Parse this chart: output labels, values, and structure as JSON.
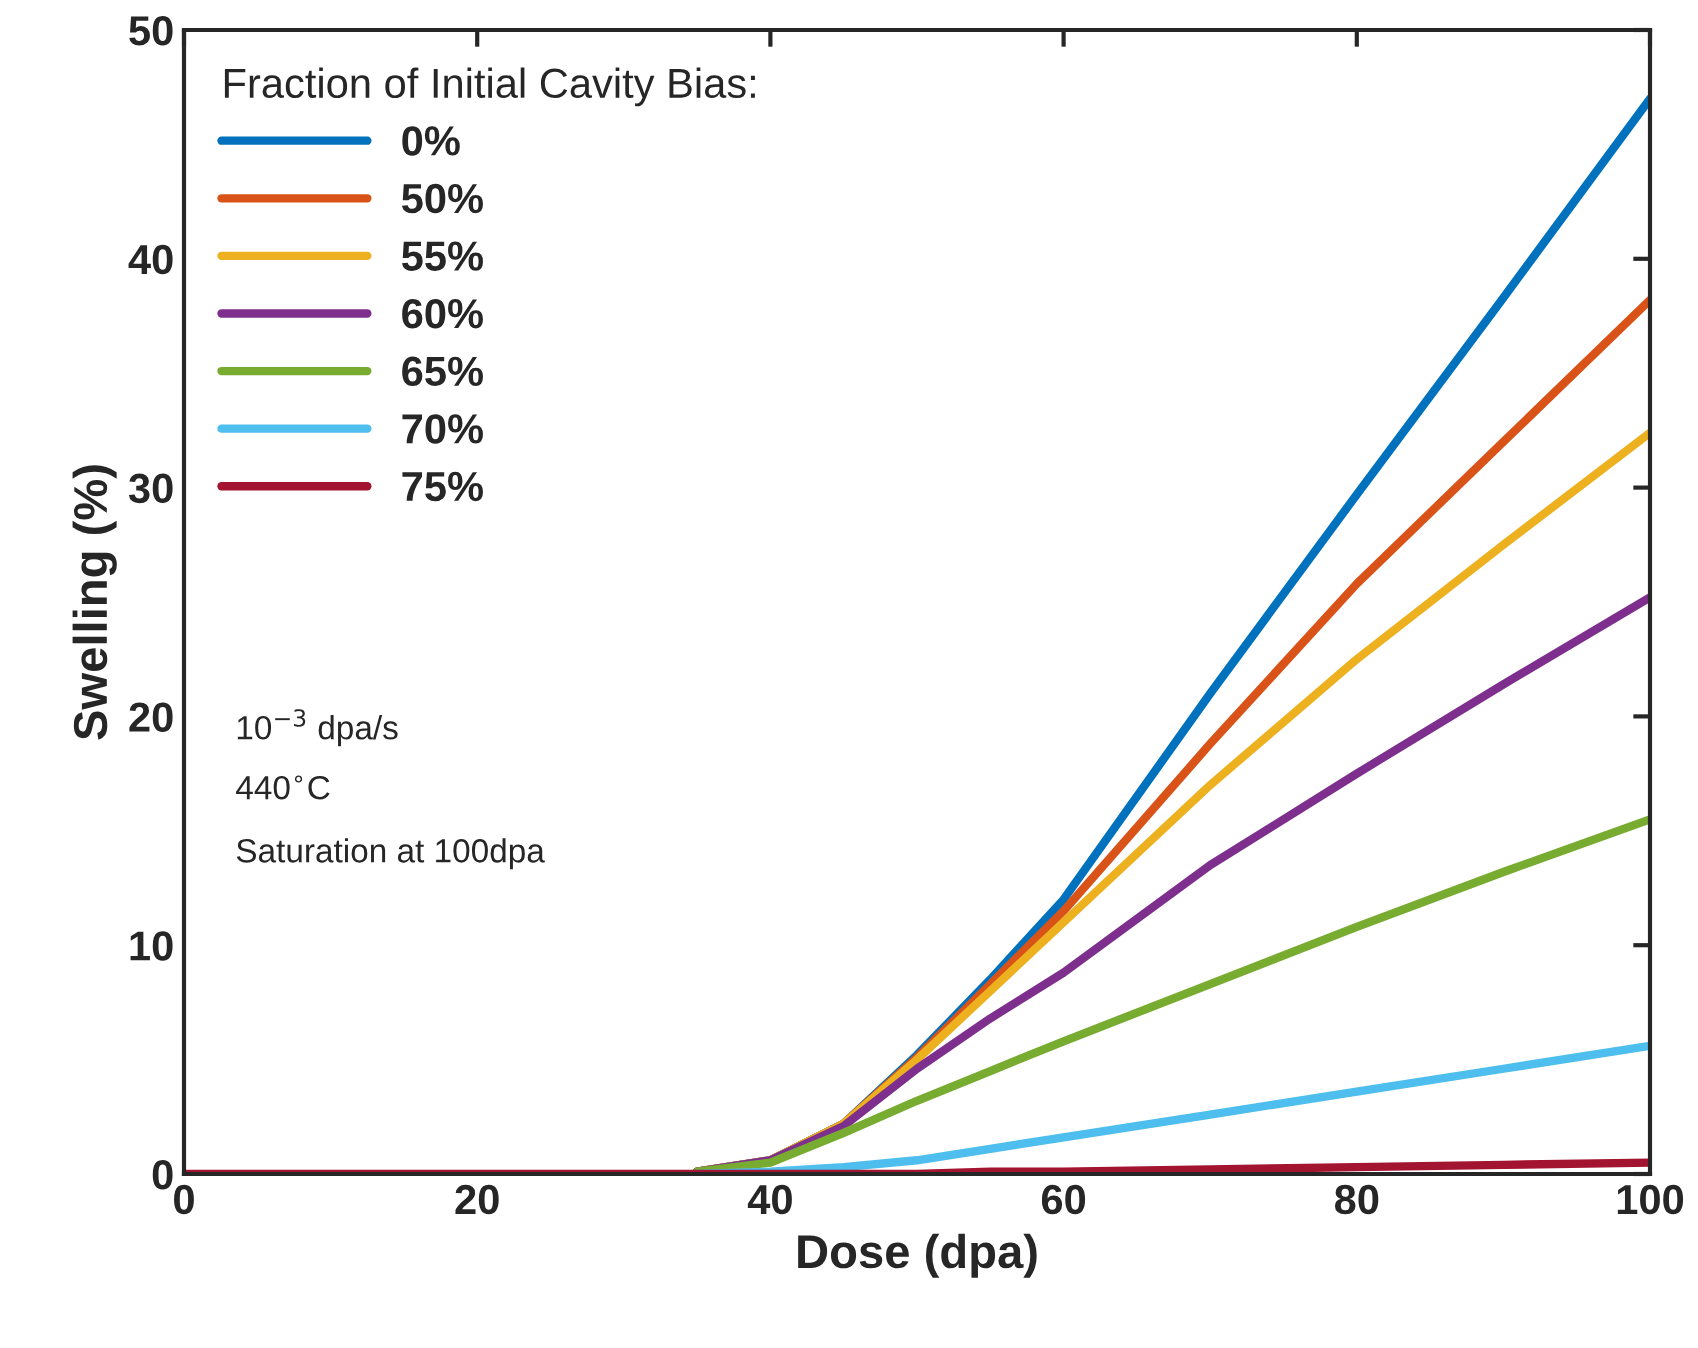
{
  "chart_data": {
    "type": "line",
    "xlabel": "Dose (dpa)",
    "ylabel": "Swelling (%)",
    "legend_title": "Fraction of Initial Cavity Bias:",
    "x": [
      0,
      10,
      20,
      30,
      35,
      40,
      45,
      50,
      55,
      60,
      70,
      80,
      90,
      100
    ],
    "series": [
      {
        "name": "0%",
        "color": "#0072bd",
        "values": [
          null,
          null,
          null,
          null,
          0.1,
          0.6,
          2.2,
          5.2,
          8.5,
          12,
          21,
          29.7,
          38.3,
          47
        ]
      },
      {
        "name": "50%",
        "color": "#d95319",
        "values": [
          null,
          null,
          null,
          null,
          0.1,
          0.6,
          2.2,
          5.1,
          8.3,
          11.5,
          18.8,
          25.8,
          32,
          38.2
        ]
      },
      {
        "name": "55%",
        "color": "#edb120",
        "values": [
          null,
          null,
          null,
          null,
          0.1,
          0.6,
          2.2,
          5.0,
          8.0,
          11,
          17,
          22.5,
          27.5,
          32.4
        ]
      },
      {
        "name": "60%",
        "color": "#7e2f8e",
        "values": [
          null,
          null,
          null,
          null,
          0.1,
          0.6,
          2.1,
          4.6,
          6.8,
          8.8,
          13.5,
          17.5,
          21.4,
          25.2
        ]
      },
      {
        "name": "65%",
        "color": "#77ac30",
        "values": [
          null,
          null,
          null,
          null,
          0.1,
          0.5,
          1.8,
          3.2,
          4.5,
          5.8,
          8.3,
          10.8,
          13.2,
          15.5
        ]
      },
      {
        "name": "70%",
        "color": "#4dbeee",
        "values": [
          null,
          null,
          null,
          null,
          0,
          0.1,
          0.3,
          0.6,
          1.1,
          1.6,
          2.6,
          3.6,
          4.6,
          5.6
        ]
      },
      {
        "name": "75%",
        "color": "#a2142f",
        "values": [
          0,
          0,
          0,
          0,
          0,
          0,
          0,
          0,
          0.1,
          0.1,
          0.2,
          0.3,
          0.4,
          0.5
        ]
      }
    ],
    "annotations": [
      "10$^{−3}$ dpa/s",
      "440$^{∘}$C",
      "Saturation at 100dpa"
    ],
    "xlim": [
      0,
      100
    ],
    "ylim": [
      0,
      50
    ],
    "xticks": [
      0,
      20,
      40,
      60,
      80,
      100
    ],
    "yticks": [
      0,
      10,
      20,
      30,
      40,
      50
    ],
    "grid": false,
    "legend": "top left",
    "line_style": "solid",
    "marker": "none"
  }
}
